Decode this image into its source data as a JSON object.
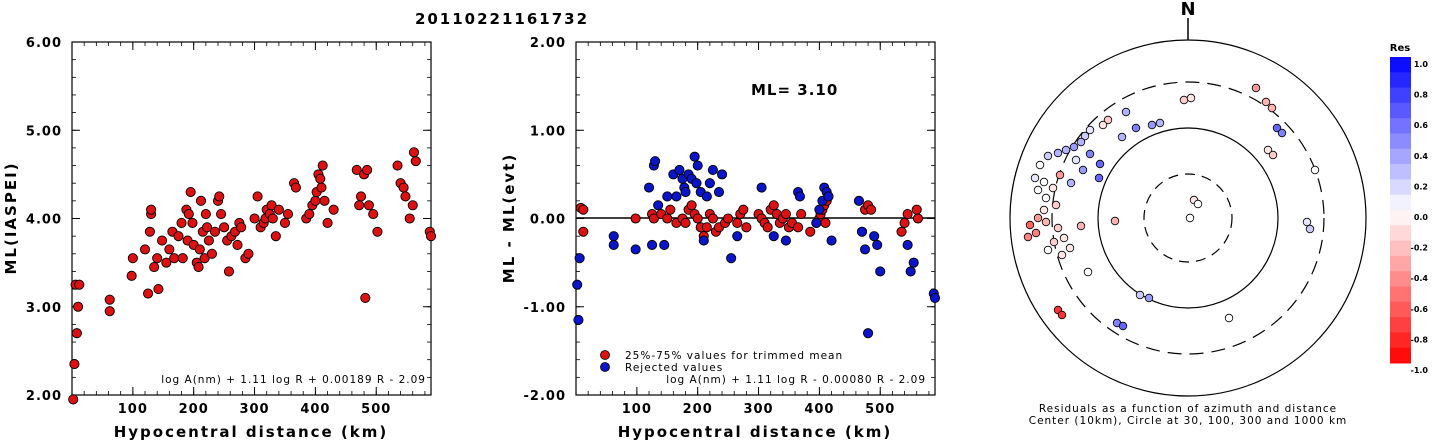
{
  "page_title": "20110221161732",
  "compass_label": "N",
  "colorbar": {
    "title": "Res",
    "ticks": [
      "1.0",
      "0.8",
      "0.6",
      "0.4",
      "0.2",
      "0.0",
      "-0.2",
      "-0.4",
      "-0.6",
      "-0.8",
      "-1.0"
    ],
    "positive_color": "#0000ff",
    "negative_color": "#ff0000",
    "zero_color": "#ffffff"
  },
  "colors": {
    "accepted": "#dd1111",
    "rejected": "#0a14c8"
  },
  "chart_data": [
    {
      "type": "scatter",
      "xlabel": "Hypocentral distance (km)",
      "ylabel": "ML(IASPEI)",
      "xlim": [
        0,
        590
      ],
      "ylim": [
        2.0,
        6.0
      ],
      "xticks": [
        "100",
        "200",
        "300",
        "400",
        "500"
      ],
      "yticks": [
        "2.00",
        "3.00",
        "4.00",
        "5.00",
        "6.00"
      ],
      "formula": "log A(nm) + 1.11 log R + 0.00189 R - 2.09",
      "points": [
        [
          2,
          1.95
        ],
        [
          4,
          2.35
        ],
        [
          6,
          3.25
        ],
        [
          8,
          2.7
        ],
        [
          12,
          3.25
        ],
        [
          10,
          3.0
        ],
        [
          62,
          3.08
        ],
        [
          62,
          2.95
        ],
        [
          98,
          3.35
        ],
        [
          100,
          3.55
        ],
        [
          120,
          3.65
        ],
        [
          125,
          3.15
        ],
        [
          128,
          3.85
        ],
        [
          130,
          4.05
        ],
        [
          130,
          4.1
        ],
        [
          135,
          3.45
        ],
        [
          140,
          3.55
        ],
        [
          142,
          3.2
        ],
        [
          148,
          3.75
        ],
        [
          155,
          3.5
        ],
        [
          160,
          3.65
        ],
        [
          165,
          3.85
        ],
        [
          168,
          3.55
        ],
        [
          175,
          3.8
        ],
        [
          180,
          3.95
        ],
        [
          182,
          3.55
        ],
        [
          188,
          4.1
        ],
        [
          190,
          3.75
        ],
        [
          192,
          4.05
        ],
        [
          195,
          4.3
        ],
        [
          198,
          3.95
        ],
        [
          200,
          3.7
        ],
        [
          205,
          3.5
        ],
        [
          208,
          3.45
        ],
        [
          210,
          3.65
        ],
        [
          212,
          4.2
        ],
        [
          215,
          3.85
        ],
        [
          218,
          3.55
        ],
        [
          220,
          4.05
        ],
        [
          222,
          3.9
        ],
        [
          225,
          3.75
        ],
        [
          230,
          3.6
        ],
        [
          235,
          3.85
        ],
        [
          240,
          4.2
        ],
        [
          242,
          4.25
        ],
        [
          245,
          4.05
        ],
        [
          250,
          3.9
        ],
        [
          255,
          3.75
        ],
        [
          258,
          3.4
        ],
        [
          262,
          3.8
        ],
        [
          268,
          3.85
        ],
        [
          272,
          3.7
        ],
        [
          275,
          3.95
        ],
        [
          278,
          3.9
        ],
        [
          285,
          3.55
        ],
        [
          290,
          3.6
        ],
        [
          300,
          4.0
        ],
        [
          305,
          4.25
        ],
        [
          310,
          3.9
        ],
        [
          315,
          3.95
        ],
        [
          318,
          4.0
        ],
        [
          320,
          4.1
        ],
        [
          325,
          4.05
        ],
        [
          328,
          4.15
        ],
        [
          330,
          4.0
        ],
        [
          335,
          3.8
        ],
        [
          340,
          4.1
        ],
        [
          350,
          3.95
        ],
        [
          355,
          4.05
        ],
        [
          365,
          4.4
        ],
        [
          368,
          4.35
        ],
        [
          385,
          4.0
        ],
        [
          390,
          4.05
        ],
        [
          395,
          4.15
        ],
        [
          400,
          4.2
        ],
        [
          402,
          4.3
        ],
        [
          405,
          4.5
        ],
        [
          408,
          4.45
        ],
        [
          410,
          4.35
        ],
        [
          412,
          4.6
        ],
        [
          415,
          4.2
        ],
        [
          420,
          3.95
        ],
        [
          430,
          4.1
        ],
        [
          468,
          4.55
        ],
        [
          472,
          4.15
        ],
        [
          475,
          4.25
        ],
        [
          480,
          4.5
        ],
        [
          482,
          3.1
        ],
        [
          485,
          4.55
        ],
        [
          488,
          4.15
        ],
        [
          495,
          4.05
        ],
        [
          502,
          3.85
        ],
        [
          535,
          4.6
        ],
        [
          540,
          4.4
        ],
        [
          545,
          4.35
        ],
        [
          548,
          4.25
        ],
        [
          555,
          4.0
        ],
        [
          560,
          4.15
        ],
        [
          562,
          4.75
        ],
        [
          565,
          4.65
        ],
        [
          588,
          3.85
        ],
        [
          590,
          3.8
        ]
      ]
    },
    {
      "type": "scatter",
      "xlabel": "Hypocentral distance (km)",
      "ylabel": "ML - ML(evt)",
      "xlim": [
        0,
        590
      ],
      "ylim": [
        -2.0,
        2.0
      ],
      "xticks": [
        "100",
        "200",
        "300",
        "400",
        "500"
      ],
      "yticks": [
        "-2.00",
        "-1.00",
        "0.00",
        "1.00",
        "2.00"
      ],
      "annotation": "ML= 3.10",
      "formula": "log A(nm) + 1.11 log R - 0.00080 R - 2.09",
      "legend": [
        {
          "label": "25%-75% values for trimmed mean",
          "color": "#dd1111"
        },
        {
          "label": "Rejected values",
          "color": "#0a14c8"
        }
      ],
      "series": [
        {
          "color": "#dd1111",
          "points": [
            [
              8,
              0.12
            ],
            [
              12,
              0.1
            ],
            [
              12,
              -0.15
            ],
            [
              98,
              0.0
            ],
            [
              125,
              0.05
            ],
            [
              128,
              0.0
            ],
            [
              140,
              0.05
            ],
            [
              150,
              0.0
            ],
            [
              155,
              0.1
            ],
            [
              165,
              -0.05
            ],
            [
              175,
              0.0
            ],
            [
              180,
              -0.05
            ],
            [
              185,
              0.1
            ],
            [
              190,
              0.15
            ],
            [
              195,
              0.05
            ],
            [
              200,
              0.0
            ],
            [
              205,
              -0.1
            ],
            [
              210,
              -0.2
            ],
            [
              215,
              -0.1
            ],
            [
              220,
              0.05
            ],
            [
              225,
              0.0
            ],
            [
              230,
              -0.15
            ],
            [
              235,
              -0.1
            ],
            [
              245,
              -0.05
            ],
            [
              250,
              0.0
            ],
            [
              265,
              -0.05
            ],
            [
              270,
              0.05
            ],
            [
              275,
              0.1
            ],
            [
              280,
              -0.1
            ],
            [
              300,
              0.05
            ],
            [
              305,
              0.0
            ],
            [
              310,
              -0.05
            ],
            [
              315,
              -0.1
            ],
            [
              320,
              0.1
            ],
            [
              325,
              0.15
            ],
            [
              330,
              0.05
            ],
            [
              335,
              -0.05
            ],
            [
              340,
              0.0
            ],
            [
              345,
              0.05
            ],
            [
              350,
              -0.1
            ],
            [
              355,
              -0.05
            ],
            [
              365,
              -0.1
            ],
            [
              370,
              0.05
            ],
            [
              385,
              -0.15
            ],
            [
              395,
              -0.05
            ],
            [
              400,
              0.0
            ],
            [
              402,
              0.05
            ],
            [
              405,
              0.1
            ],
            [
              408,
              0.15
            ],
            [
              410,
              -0.05
            ],
            [
              412,
              0.2
            ],
            [
              470,
              -0.15
            ],
            [
              475,
              0.1
            ],
            [
              480,
              0.15
            ],
            [
              485,
              0.1
            ],
            [
              535,
              -0.15
            ],
            [
              540,
              -0.05
            ],
            [
              545,
              0.05
            ],
            [
              560,
              0.1
            ],
            [
              562,
              0.0
            ]
          ]
        },
        {
          "color": "#0a14c8",
          "points": [
            [
              2,
              -0.75
            ],
            [
              4,
              -1.15
            ],
            [
              6,
              -0.45
            ],
            [
              62,
              -0.2
            ],
            [
              62,
              -0.3
            ],
            [
              98,
              -0.35
            ],
            [
              120,
              0.35
            ],
            [
              125,
              -0.3
            ],
            [
              128,
              0.6
            ],
            [
              130,
              0.65
            ],
            [
              135,
              0.15
            ],
            [
              145,
              -0.3
            ],
            [
              150,
              0.25
            ],
            [
              160,
              0.5
            ],
            [
              165,
              0.25
            ],
            [
              170,
              0.55
            ],
            [
              175,
              0.45
            ],
            [
              178,
              0.35
            ],
            [
              180,
              0.3
            ],
            [
              185,
              0.5
            ],
            [
              190,
              0.45
            ],
            [
              195,
              0.7
            ],
            [
              198,
              0.4
            ],
            [
              200,
              0.6
            ],
            [
              205,
              0.3
            ],
            [
              210,
              -0.25
            ],
            [
              215,
              0.25
            ],
            [
              220,
              0.4
            ],
            [
              225,
              0.55
            ],
            [
              235,
              0.3
            ],
            [
              240,
              0.5
            ],
            [
              255,
              -0.45
            ],
            [
              265,
              -0.2
            ],
            [
              305,
              0.35
            ],
            [
              325,
              -0.2
            ],
            [
              345,
              -0.25
            ],
            [
              365,
              0.3
            ],
            [
              368,
              0.25
            ],
            [
              395,
              -0.05
            ],
            [
              400,
              0.1
            ],
            [
              405,
              0.2
            ],
            [
              408,
              0.35
            ],
            [
              412,
              0.3
            ],
            [
              415,
              0.25
            ],
            [
              420,
              -0.25
            ],
            [
              465,
              0.2
            ],
            [
              470,
              -0.15
            ],
            [
              475,
              -0.35
            ],
            [
              480,
              -1.3
            ],
            [
              490,
              -0.2
            ],
            [
              495,
              -0.3
            ],
            [
              500,
              -0.6
            ],
            [
              545,
              -0.3
            ],
            [
              550,
              -0.6
            ],
            [
              555,
              -0.5
            ],
            [
              588,
              -0.85
            ],
            [
              590,
              -0.9
            ]
          ]
        }
      ]
    }
  ],
  "residual_map": {
    "caption_line1": "Residuals as a function of azimuth and distance",
    "caption_line2": "Center (10km), Circle at 30, 100, 300 and 1000 km"
  }
}
